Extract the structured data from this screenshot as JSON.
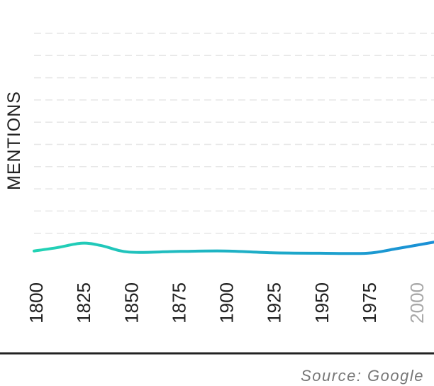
{
  "chart_data": {
    "type": "line",
    "ylabel": "MENTIONS",
    "xlim": [
      1800,
      2010
    ],
    "ylim": [
      0,
      10
    ],
    "x_ticks": [
      {
        "label": "1800",
        "value": 1800,
        "muted": false
      },
      {
        "label": "1825",
        "value": 1825,
        "muted": false
      },
      {
        "label": "1850",
        "value": 1850,
        "muted": false
      },
      {
        "label": "1875",
        "value": 1875,
        "muted": false
      },
      {
        "label": "1900",
        "value": 1900,
        "muted": false
      },
      {
        "label": "1925",
        "value": 1925,
        "muted": false
      },
      {
        "label": "1950",
        "value": 1950,
        "muted": false
      },
      {
        "label": "1975",
        "value": 1975,
        "muted": false
      },
      {
        "label": "2000",
        "value": 2000,
        "muted": true
      }
    ],
    "gridlines": true,
    "series": [
      {
        "x": [
          1800,
          1812,
          1825,
          1835,
          1850,
          1875,
          1900,
          1925,
          1950,
          1975,
          1990,
          2010
        ],
        "y": [
          0.2,
          0.35,
          0.55,
          0.45,
          0.15,
          0.18,
          0.2,
          0.12,
          0.1,
          0.1,
          0.3,
          0.6
        ],
        "color_start": "#22d3b4",
        "color_end": "#1a8fd6"
      }
    ]
  },
  "source_text": "Source: Google"
}
